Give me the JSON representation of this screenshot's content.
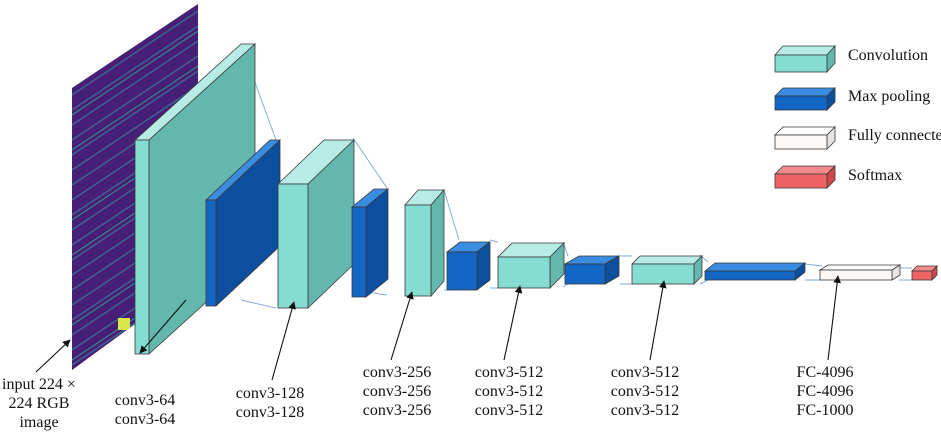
{
  "legend": {
    "convolution": "Convolution",
    "max_pooling": "Max pooling",
    "fully_connected": "Fully connected",
    "softmax": "Softmax"
  },
  "colors": {
    "conv_front": "#84dcd2",
    "conv_top": "#b6ece5",
    "conv_side": "#63b7ac",
    "pool_front": "#1466c4",
    "pool_top": "#3a8ce0",
    "pool_side": "#0c4f9f",
    "fc_front": "#fbf8f5",
    "softmax_front": "#ee6464",
    "connector": "#86aed3",
    "input_dark": "#4a1d74",
    "input_mid": "#3a6f9a",
    "input_light": "#2ab4a0"
  },
  "labels": {
    "input": [
      "input 224 ×",
      "224 RGB",
      "image"
    ],
    "block1": [
      "conv3-64",
      "conv3-64"
    ],
    "block2": [
      "conv3-128",
      "conv3-128"
    ],
    "block3": [
      "conv3-256",
      "conv3-256",
      "conv3-256"
    ],
    "block4": [
      "conv3-512",
      "conv3-512",
      "conv3-512"
    ],
    "block5": [
      "conv3-512",
      "conv3-512",
      "conv3-512"
    ],
    "fc": [
      "FC-4096",
      "FC-4096",
      "FC-1000"
    ]
  }
}
